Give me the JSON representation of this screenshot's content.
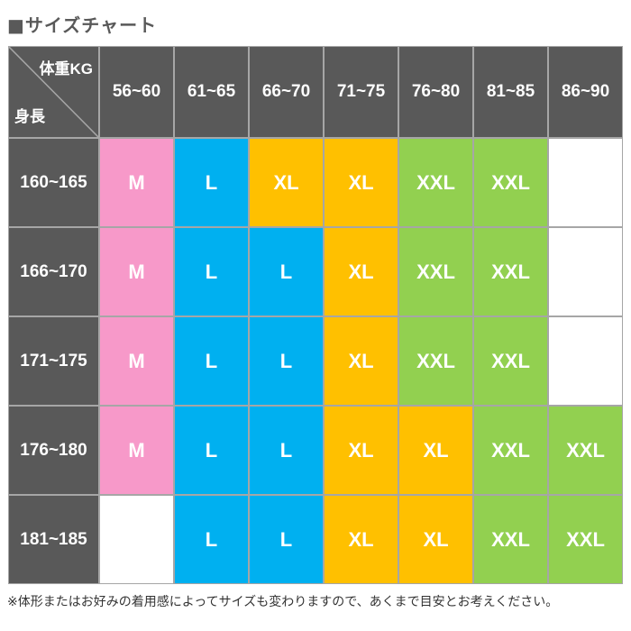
{
  "title": "■サイズチャート",
  "corner": {
    "weight_label": "体重KG",
    "height_label": "身長"
  },
  "columns": [
    "56~60",
    "61~65",
    "66~70",
    "71~75",
    "76~80",
    "81~85",
    "86~90"
  ],
  "colors": {
    "M": "#f799c9",
    "L": "#00b0f0",
    "XL": "#ffc000",
    "XXL": "#92d050",
    "empty": "#ffffff",
    "header": "#595959"
  },
  "rows": [
    {
      "label": "160~165",
      "sizes": [
        "M",
        "L",
        "XL",
        "XL",
        "XXL",
        "XXL",
        ""
      ]
    },
    {
      "label": "166~170",
      "sizes": [
        "M",
        "L",
        "L",
        "XL",
        "XXL",
        "XXL",
        ""
      ]
    },
    {
      "label": "171~175",
      "sizes": [
        "M",
        "L",
        "L",
        "XL",
        "XXL",
        "XXL",
        ""
      ]
    },
    {
      "label": "176~180",
      "sizes": [
        "M",
        "L",
        "L",
        "XL",
        "XL",
        "XXL",
        "XXL"
      ]
    },
    {
      "label": "181~185",
      "sizes": [
        "",
        "L",
        "L",
        "XL",
        "XL",
        "XXL",
        "XXL"
      ]
    }
  ],
  "note": "※体形またはお好みの着用感によってサイズも変わりますので、あくまで目安とお考えください。"
}
